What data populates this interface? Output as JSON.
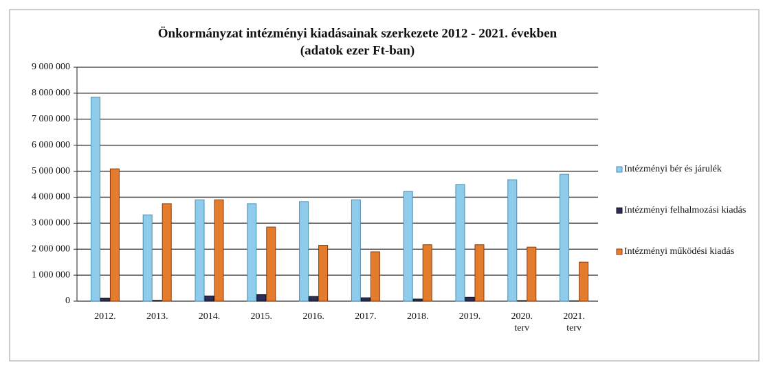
{
  "chart_data": {
    "type": "bar",
    "title": "Önkormányzat intézményi kiadásainak szerkezete 2012 - 2021. években",
    "subtitle": "(adatok ezer Ft-ban)",
    "categories": [
      "2012.",
      "2013.",
      "2014.",
      "2015.",
      "2016.",
      "2017.",
      "2018.",
      "2019.",
      "2020. terv",
      "2021. terv"
    ],
    "series": [
      {
        "name": "Intézményi bér és járulék",
        "color": "#8fcbea",
        "values": [
          7850000,
          3320000,
          3900000,
          3750000,
          3830000,
          3900000,
          4220000,
          4490000,
          4670000,
          4880000
        ]
      },
      {
        "name": "Intézményi felhalmozási kiadás",
        "color": "#2b2b5c",
        "values": [
          120000,
          30000,
          200000,
          250000,
          180000,
          130000,
          80000,
          150000,
          20000,
          10000
        ]
      },
      {
        "name": "Intézményi működési kiadás",
        "color": "#e37c2c",
        "values": [
          5090000,
          3750000,
          3900000,
          2850000,
          2150000,
          1900000,
          2170000,
          2170000,
          2080000,
          1500000
        ]
      }
    ],
    "ylim": [
      0,
      9000000
    ],
    "yticks": [
      0,
      {
        "value": 1000000,
        "label": "1 000 000"
      },
      {
        "value": 2000000,
        "label": "2 000 000"
      },
      {
        "value": 3000000,
        "label": "3 000 000"
      },
      {
        "value": 4000000,
        "label": "4 000 000"
      },
      {
        "value": 5000000,
        "label": "5 000 000"
      },
      {
        "value": 6000000,
        "label": "6 000 000"
      },
      {
        "value": 7000000,
        "label": "7 000 000"
      },
      {
        "value": 8000000,
        "label": "8 000 000"
      },
      {
        "value": 9000000,
        "label": "9 000 000"
      }
    ],
    "grid": true,
    "legend": "right"
  }
}
